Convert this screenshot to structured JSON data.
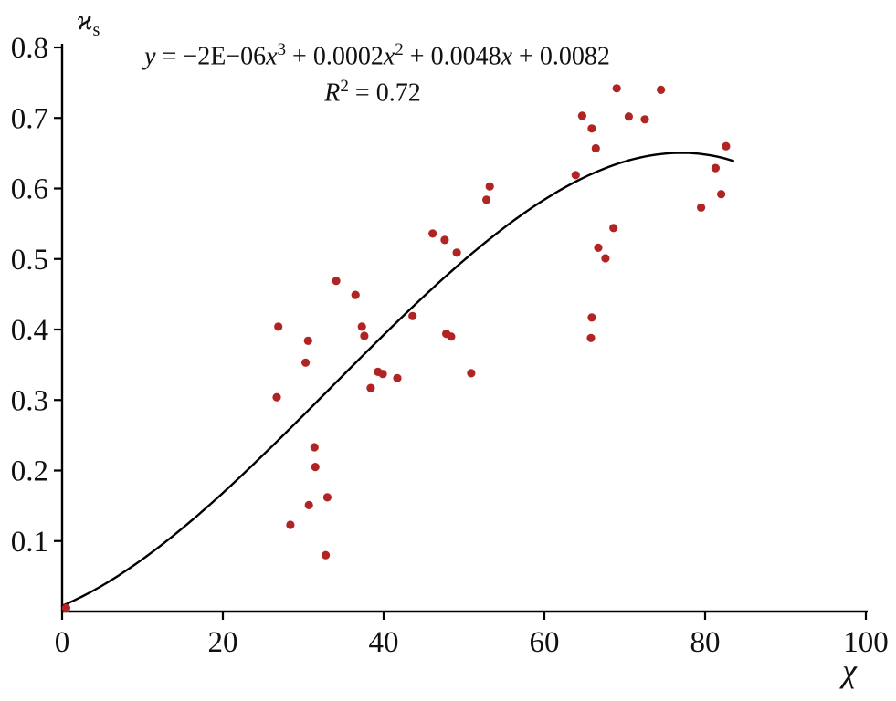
{
  "chart_data": {
    "type": "scatter",
    "title": "",
    "xlabel": "χ",
    "ylabel": "ϰs",
    "equation_text": "y = −2E−06x3 + 0.0002x2 + 0.0048x + 0.0082",
    "r_squared_text": "R2 = 0.72",
    "r_squared": 0.72,
    "xlim": [
      0,
      100
    ],
    "ylim": [
      0,
      0.8
    ],
    "x_ticks": [
      0,
      20,
      40,
      60,
      80,
      100
    ],
    "y_ticks": [
      0.1,
      0.2,
      0.3,
      0.4,
      0.5,
      0.6,
      0.7,
      0.8
    ],
    "grid": false,
    "legend": "none",
    "point_color": "#b02424",
    "curve_color": "#000000",
    "points": [
      [
        0.5,
        0.005
      ],
      [
        26.9,
        0.404
      ],
      [
        26.7,
        0.304
      ],
      [
        28.4,
        0.123
      ],
      [
        30.6,
        0.384
      ],
      [
        30.3,
        0.353
      ],
      [
        31.4,
        0.233
      ],
      [
        31.5,
        0.205
      ],
      [
        30.7,
        0.151
      ],
      [
        33.0,
        0.162
      ],
      [
        32.8,
        0.08
      ],
      [
        34.1,
        0.469
      ],
      [
        36.5,
        0.449
      ],
      [
        37.3,
        0.404
      ],
      [
        37.6,
        0.391
      ],
      [
        38.4,
        0.317
      ],
      [
        39.3,
        0.34
      ],
      [
        39.9,
        0.337
      ],
      [
        41.7,
        0.331
      ],
      [
        43.6,
        0.419
      ],
      [
        46.1,
        0.536
      ],
      [
        47.6,
        0.527
      ],
      [
        47.8,
        0.394
      ],
      [
        48.4,
        0.39
      ],
      [
        49.1,
        0.509
      ],
      [
        50.9,
        0.338
      ],
      [
        53.2,
        0.603
      ],
      [
        52.8,
        0.584
      ],
      [
        63.9,
        0.619
      ],
      [
        64.7,
        0.703
      ],
      [
        65.9,
        0.685
      ],
      [
        66.4,
        0.657
      ],
      [
        65.9,
        0.417
      ],
      [
        65.8,
        0.388
      ],
      [
        66.7,
        0.516
      ],
      [
        67.6,
        0.501
      ],
      [
        68.6,
        0.544
      ],
      [
        69.0,
        0.742
      ],
      [
        70.5,
        0.702
      ],
      [
        72.5,
        0.698
      ],
      [
        74.5,
        0.74
      ],
      [
        79.5,
        0.573
      ],
      [
        81.3,
        0.629
      ],
      [
        82.0,
        0.592
      ],
      [
        82.6,
        0.66
      ]
    ],
    "trendline": {
      "kind": "cubic-polynomial",
      "coefficients": [
        -2e-06,
        0.0002,
        0.0048,
        0.0082
      ],
      "domain": [
        0,
        83.5
      ]
    },
    "equation_parts": [
      {
        "t": "y",
        "i": true
      },
      {
        "t": " = −2E−06"
      },
      {
        "t": "x",
        "i": true
      },
      {
        "t": "3",
        "sup": true
      },
      {
        "t": " + 0.0002"
      },
      {
        "t": "x",
        "i": true
      },
      {
        "t": "2",
        "sup": true
      },
      {
        "t": " + 0.0048"
      },
      {
        "t": "x",
        "i": true
      },
      {
        "t": " + 0.0082"
      }
    ],
    "r2_parts": [
      {
        "t": "R",
        "i": true
      },
      {
        "t": "2",
        "sup": true
      },
      {
        "t": " = 0.72"
      }
    ],
    "y_title_parts": [
      {
        "t": "ϰ",
        "i": true
      },
      {
        "t": "s",
        "sub": true
      }
    ],
    "x_title_parts": [
      {
        "t": "χ",
        "i": true
      }
    ]
  }
}
